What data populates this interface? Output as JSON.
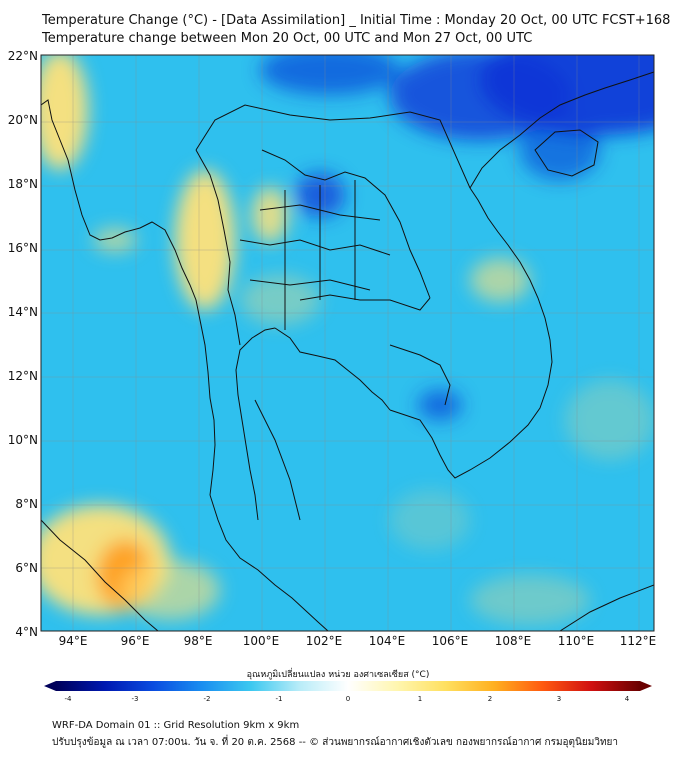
{
  "header": {
    "title_line1": "Temperature Change (°C) - [Data Assimilation] _ Initial Time : Monday 20 Oct, 00 UTC FCST+168",
    "title_line2": "Temperature change between Mon 20 Oct, 00 UTC and Mon 27 Oct, 00 UTC"
  },
  "map": {
    "lat_labels": [
      "22°N",
      "20°N",
      "18°N",
      "16°N",
      "14°N",
      "12°N",
      "10°N",
      "8°N",
      "6°N",
      "4°N"
    ],
    "lon_labels": [
      "94°E",
      "96°E",
      "98°E",
      "100°E",
      "102°E",
      "104°E",
      "106°E",
      "108°E",
      "110°E",
      "112°E"
    ],
    "background_color": "#2fc0ee",
    "cold_color": "#0a33d6",
    "warm_color": "#ffe27a",
    "hot_color": "#ff9a1a",
    "border_color": "#111111",
    "grid_color": "#8a8a8a"
  },
  "colorbar": {
    "title": "อุณหภูมิเปลี่ยนแปลง หน่วย องศาเซลเซียส (°C)",
    "tick_labels": [
      "-4",
      "-3",
      "-2",
      "-1",
      "0",
      "1",
      "2",
      "3",
      "4"
    ],
    "min": -4,
    "max": 4,
    "colors": [
      "#00005a",
      "#0018b0",
      "#0a4ce0",
      "#1a8ef0",
      "#3cc8f0",
      "#b8ecf8",
      "#ffffff",
      "#fff6b0",
      "#ffe060",
      "#ffb020",
      "#ff5a10",
      "#d01010",
      "#6a0000"
    ]
  },
  "footer": {
    "line1": "WRF-DA Domain 01 :: Grid Resolution 9km x 9km",
    "line2": "ปรับปรุงข้อมูล ณ เวลา 07:00น. วัน จ. ที่ 20 ต.ค. 2568 -- © ส่วนพยากรณ์อากาศเชิงตัวเลข กองพยากรณ์อากาศ กรมอุตุนิยมวิทยา"
  }
}
